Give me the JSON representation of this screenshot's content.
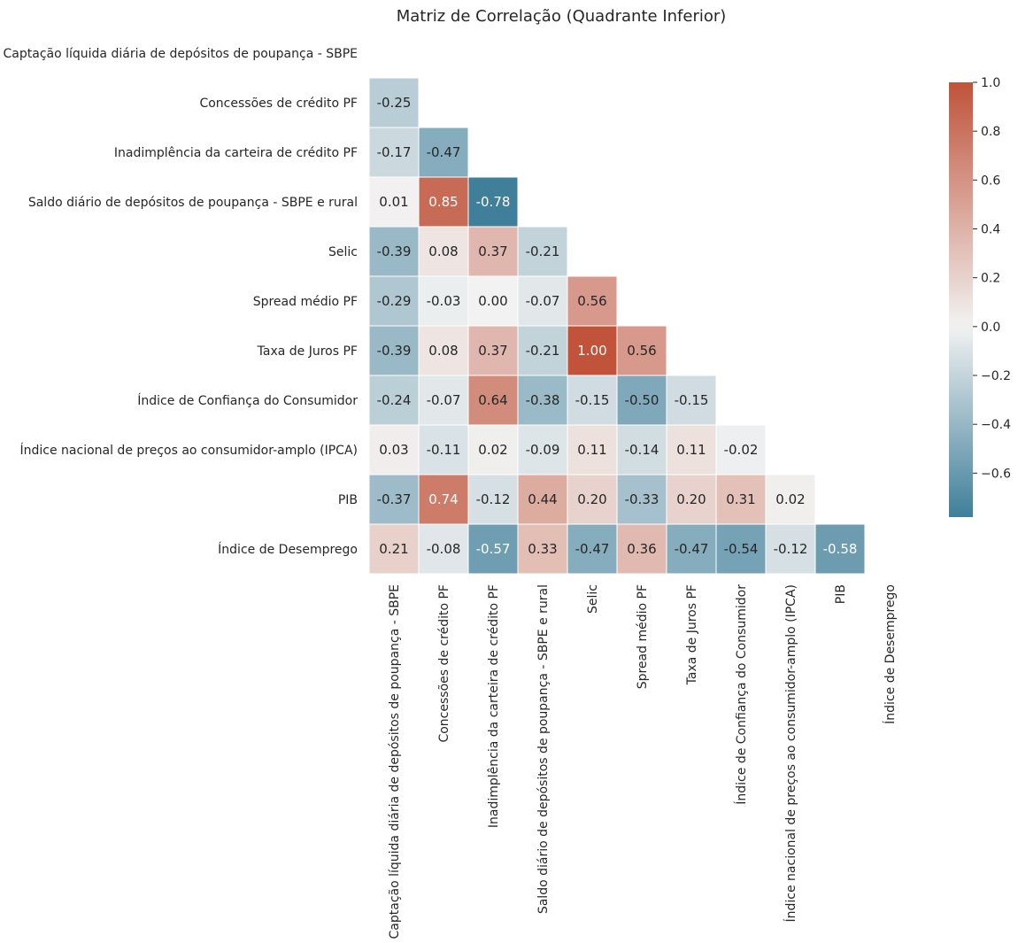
{
  "chart_data": {
    "type": "heatmap",
    "title": "Matriz de Correlação (Quadrante Inferior)",
    "labels": [
      "Captação líquida diária de depósitos de poupança - SBPE",
      "Concessões de crédito PF",
      "Inadimplência da carteira de crédito PF",
      "Saldo diário de depósitos de poupança - SBPE e rural",
      "Selic",
      "Spread médio PF",
      "Taxa de Juros PF",
      "Índice de Confiança do Consumidor",
      "Índice nacional de preços ao consumidor-amplo (IPCA)",
      "PIB",
      "Índice de Desemprego"
    ],
    "matrix": [
      [],
      [
        -0.25
      ],
      [
        -0.17,
        -0.47
      ],
      [
        0.01,
        0.85,
        -0.78
      ],
      [
        -0.39,
        0.08,
        0.37,
        -0.21
      ],
      [
        -0.29,
        -0.03,
        -0.0,
        -0.07,
        0.56
      ],
      [
        -0.39,
        0.08,
        0.37,
        -0.21,
        1.0,
        0.56
      ],
      [
        -0.24,
        -0.07,
        0.64,
        -0.38,
        -0.15,
        -0.5,
        -0.15
      ],
      [
        0.03,
        -0.11,
        0.02,
        -0.09,
        0.11,
        -0.14,
        0.11,
        -0.02
      ],
      [
        -0.37,
        0.74,
        -0.12,
        0.44,
        0.2,
        -0.33,
        0.2,
        0.31,
        0.02
      ],
      [
        0.21,
        -0.08,
        -0.57,
        0.33,
        -0.47,
        0.36,
        -0.47,
        -0.54,
        -0.12,
        -0.58
      ]
    ],
    "mask": "upper triangle and diagonal",
    "colormap": {
      "negative": "#3f7f9a",
      "center": "#f2f2f2",
      "positive": "#c0533a",
      "vmin": -0.78,
      "vmax": 1.0,
      "center_value": 0
    },
    "colorbar": {
      "ticks": [
        1.0,
        0.8,
        0.6,
        0.4,
        0.2,
        0.0,
        -0.2,
        -0.4,
        -0.6
      ],
      "tick_labels": [
        "1.0",
        "0.8",
        "0.6",
        "0.4",
        "0.2",
        "0.0",
        "−0.2",
        "−0.4",
        "−0.6"
      ]
    }
  }
}
